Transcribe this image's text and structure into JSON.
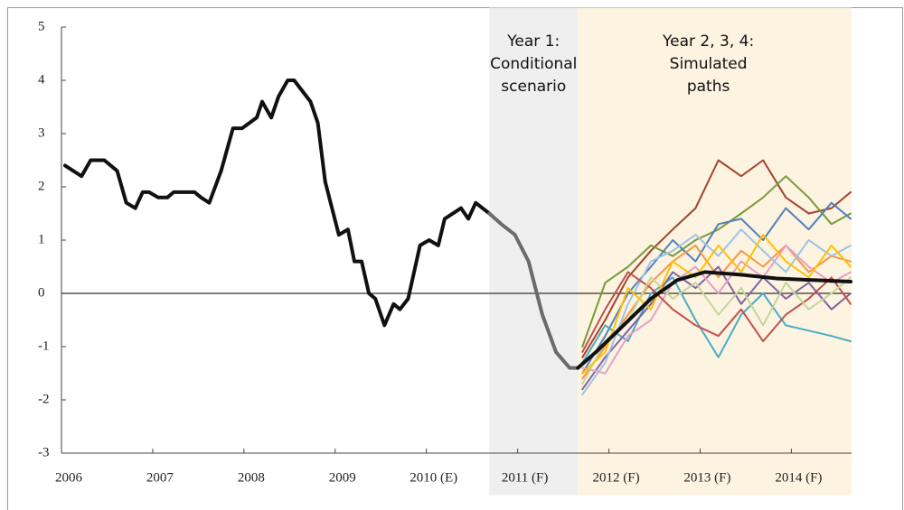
{
  "chart_data": {
    "type": "line",
    "xlim": [
      2006.0,
      2014.66
    ],
    "ylim": [
      -3,
      5
    ],
    "yticks": [
      -3,
      -2,
      -1,
      0,
      1,
      2,
      3,
      4,
      5
    ],
    "xticks": [
      2006,
      2007,
      2008,
      2009,
      {
        "value": 2010,
        "label": "2010 (E)"
      },
      {
        "value": 2011,
        "label": "2011 (F)"
      },
      {
        "value": 2012,
        "label": "2012 (F)"
      },
      {
        "value": 2013,
        "label": "2013 (F)"
      },
      {
        "value": 2014,
        "label": "2014 (F)"
      }
    ],
    "zero_line": true,
    "regions": [
      {
        "xlim": [
          2010.69,
          2011.66
        ],
        "color": "#efefef",
        "label": [
          "Year 1:",
          "Conditional",
          "scenario"
        ]
      },
      {
        "xlim": [
          2011.66,
          2014.66
        ],
        "color": "#fdf3e1",
        "label": [
          "Year 2, 3, 4:",
          "Simulated",
          "paths"
        ]
      }
    ],
    "series": [
      {
        "color": "#a0442c",
        "linewidth": 2,
        "x": [
          2011.71,
          2011.96,
          2012.21,
          2012.46,
          2012.7,
          2012.95,
          2013.2,
          2013.45,
          2013.69,
          2013.94,
          2014.19,
          2014.44,
          2014.65
        ],
        "values": [
          -1.2,
          -0.5,
          0.3,
          0.8,
          1.2,
          1.6,
          2.5,
          2.2,
          2.5,
          1.8,
          1.5,
          1.6,
          1.9
        ]
      },
      {
        "color": "#7a9a3a",
        "linewidth": 2,
        "x": [
          2011.71,
          2011.96,
          2012.21,
          2012.46,
          2012.7,
          2012.95,
          2013.2,
          2013.45,
          2013.69,
          2013.94,
          2014.19,
          2014.44,
          2014.65
        ],
        "values": [
          -1.0,
          0.2,
          0.5,
          0.9,
          0.7,
          1.0,
          1.2,
          1.5,
          1.8,
          2.2,
          1.8,
          1.3,
          1.5
        ]
      },
      {
        "color": "#4f81bd",
        "linewidth": 2,
        "x": [
          2011.71,
          2011.96,
          2012.21,
          2012.46,
          2012.7,
          2012.95,
          2013.2,
          2013.45,
          2013.69,
          2013.94,
          2014.19,
          2014.44,
          2014.65
        ],
        "values": [
          -1.5,
          -0.8,
          0.0,
          0.5,
          1.0,
          0.6,
          1.3,
          1.4,
          1.0,
          1.6,
          1.2,
          1.7,
          1.4
        ]
      },
      {
        "color": "#f79646",
        "linewidth": 2,
        "x": [
          2011.71,
          2011.96,
          2012.21,
          2012.46,
          2012.7,
          2012.95,
          2013.2,
          2013.45,
          2013.69,
          2013.94,
          2014.19,
          2014.44,
          2014.65
        ],
        "values": [
          -1.6,
          -1.0,
          -0.4,
          0.2,
          0.6,
          0.9,
          0.3,
          0.8,
          0.5,
          0.9,
          0.4,
          0.7,
          0.6
        ]
      },
      {
        "color": "#4bacc6",
        "linewidth": 2,
        "x": [
          2011.71,
          2011.96,
          2012.21,
          2012.46,
          2012.7,
          2012.95,
          2013.2,
          2013.45,
          2013.69,
          2013.94,
          2014.19,
          2014.44,
          2014.65
        ],
        "values": [
          -1.3,
          -0.6,
          -0.9,
          0.0,
          0.3,
          -0.5,
          -1.2,
          -0.4,
          0.0,
          -0.6,
          -0.7,
          -0.8,
          -0.9
        ]
      },
      {
        "color": "#8064a2",
        "linewidth": 2,
        "x": [
          2011.71,
          2011.96,
          2012.21,
          2012.46,
          2012.7,
          2012.95,
          2013.2,
          2013.45,
          2013.69,
          2013.94,
          2014.19,
          2014.44,
          2014.65
        ],
        "values": [
          -1.8,
          -1.2,
          -0.7,
          -0.2,
          0.4,
          0.1,
          0.5,
          -0.2,
          0.3,
          -0.1,
          0.2,
          -0.3,
          0.0
        ]
      },
      {
        "color": "#e6a0c4",
        "linewidth": 2,
        "x": [
          2011.71,
          2011.96,
          2012.21,
          2012.46,
          2012.7,
          2012.95,
          2013.2,
          2013.45,
          2013.69,
          2013.94,
          2014.19,
          2014.44,
          2014.65
        ],
        "values": [
          -1.4,
          -1.5,
          -0.8,
          -0.5,
          0.2,
          0.5,
          0.0,
          0.6,
          0.3,
          0.9,
          0.5,
          0.2,
          0.4
        ]
      },
      {
        "color": "#9dc3e6",
        "linewidth": 2,
        "x": [
          2011.71,
          2011.96,
          2012.21,
          2012.46,
          2012.7,
          2012.95,
          2013.2,
          2013.45,
          2013.69,
          2013.94,
          2014.19,
          2014.44,
          2014.65
        ],
        "values": [
          -1.9,
          -1.3,
          -0.2,
          0.6,
          0.8,
          1.1,
          0.7,
          1.2,
          0.8,
          0.4,
          1.0,
          0.7,
          0.9
        ]
      },
      {
        "color": "#c0504d",
        "linewidth": 2,
        "x": [
          2011.71,
          2011.96,
          2012.21,
          2012.46,
          2012.7,
          2012.95,
          2013.2,
          2013.45,
          2013.69,
          2013.94,
          2014.19,
          2014.44,
          2014.65
        ],
        "values": [
          -1.1,
          -0.3,
          0.4,
          0.1,
          -0.3,
          -0.6,
          -0.8,
          -0.3,
          -0.9,
          -0.4,
          -0.1,
          0.3,
          -0.2
        ]
      },
      {
        "color": "#c3d69b",
        "linewidth": 2,
        "x": [
          2011.71,
          2011.96,
          2012.21,
          2012.46,
          2012.7,
          2012.95,
          2013.2,
          2013.45,
          2013.69,
          2013.94,
          2014.19,
          2014.44,
          2014.65
        ],
        "values": [
          -1.7,
          -0.9,
          -0.5,
          0.3,
          -0.1,
          0.2,
          -0.4,
          0.1,
          -0.6,
          0.2,
          -0.3,
          0.0,
          0.3
        ]
      },
      {
        "color": "#ffc000",
        "linewidth": 2,
        "x": [
          2011.71,
          2011.96,
          2012.21,
          2012.46,
          2012.7,
          2012.95,
          2013.2,
          2013.45,
          2013.69,
          2013.94,
          2014.19,
          2014.44,
          2014.65
        ],
        "values": [
          -1.5,
          -1.1,
          0.1,
          -0.3,
          0.6,
          0.3,
          0.9,
          0.4,
          1.1,
          0.6,
          0.3,
          0.9,
          0.5
        ]
      },
      {
        "color": "#111111",
        "linewidth": 4,
        "x": [
          2006.04,
          2006.22,
          2006.32,
          2006.47,
          2006.61,
          2006.71,
          2006.81,
          2006.89,
          2006.96,
          2007.06,
          2007.16,
          2007.23,
          2007.46,
          2007.53,
          2007.62,
          2007.75,
          2007.88,
          2007.98,
          2008.14,
          2008.2,
          2008.3,
          2008.38,
          2008.48,
          2008.55,
          2008.73,
          2008.81,
          2008.89,
          2009.04,
          2009.14,
          2009.21,
          2009.29,
          2009.37,
          2009.44,
          2009.54,
          2009.64,
          2009.71,
          2009.8,
          2009.93,
          2010.03,
          2010.13,
          2010.2,
          2010.38,
          2010.46,
          2010.54,
          2010.69
        ],
        "values": [
          2.4,
          2.2,
          2.5,
          2.5,
          2.3,
          1.7,
          1.6,
          1.9,
          1.9,
          1.8,
          1.8,
          1.9,
          1.9,
          1.8,
          1.7,
          2.3,
          3.1,
          3.1,
          3.3,
          3.6,
          3.3,
          3.7,
          4.0,
          4.0,
          3.6,
          3.2,
          2.1,
          1.1,
          1.2,
          0.6,
          0.6,
          0.0,
          -0.1,
          -0.6,
          -0.2,
          -0.3,
          -0.1,
          0.9,
          1.0,
          0.9,
          1.4,
          1.6,
          1.4,
          1.7,
          1.5
        ]
      },
      {
        "color": "#6b6b6b",
        "linewidth": 4,
        "x": [
          2010.69,
          2010.82,
          2010.97,
          2011.12,
          2011.27,
          2011.42,
          2011.57,
          2011.66
        ],
        "values": [
          1.5,
          1.3,
          1.1,
          0.6,
          -0.4,
          -1.1,
          -1.4,
          -1.4
        ]
      },
      {
        "color": "#111111",
        "linewidth": 4,
        "x": [
          2011.66,
          2011.86,
          2012.16,
          2012.46,
          2012.75,
          2013.05,
          2013.45,
          2013.84,
          2014.24,
          2014.65
        ],
        "values": [
          -1.4,
          -1.1,
          -0.6,
          -0.1,
          0.25,
          0.4,
          0.35,
          0.28,
          0.25,
          0.22
        ]
      }
    ]
  }
}
